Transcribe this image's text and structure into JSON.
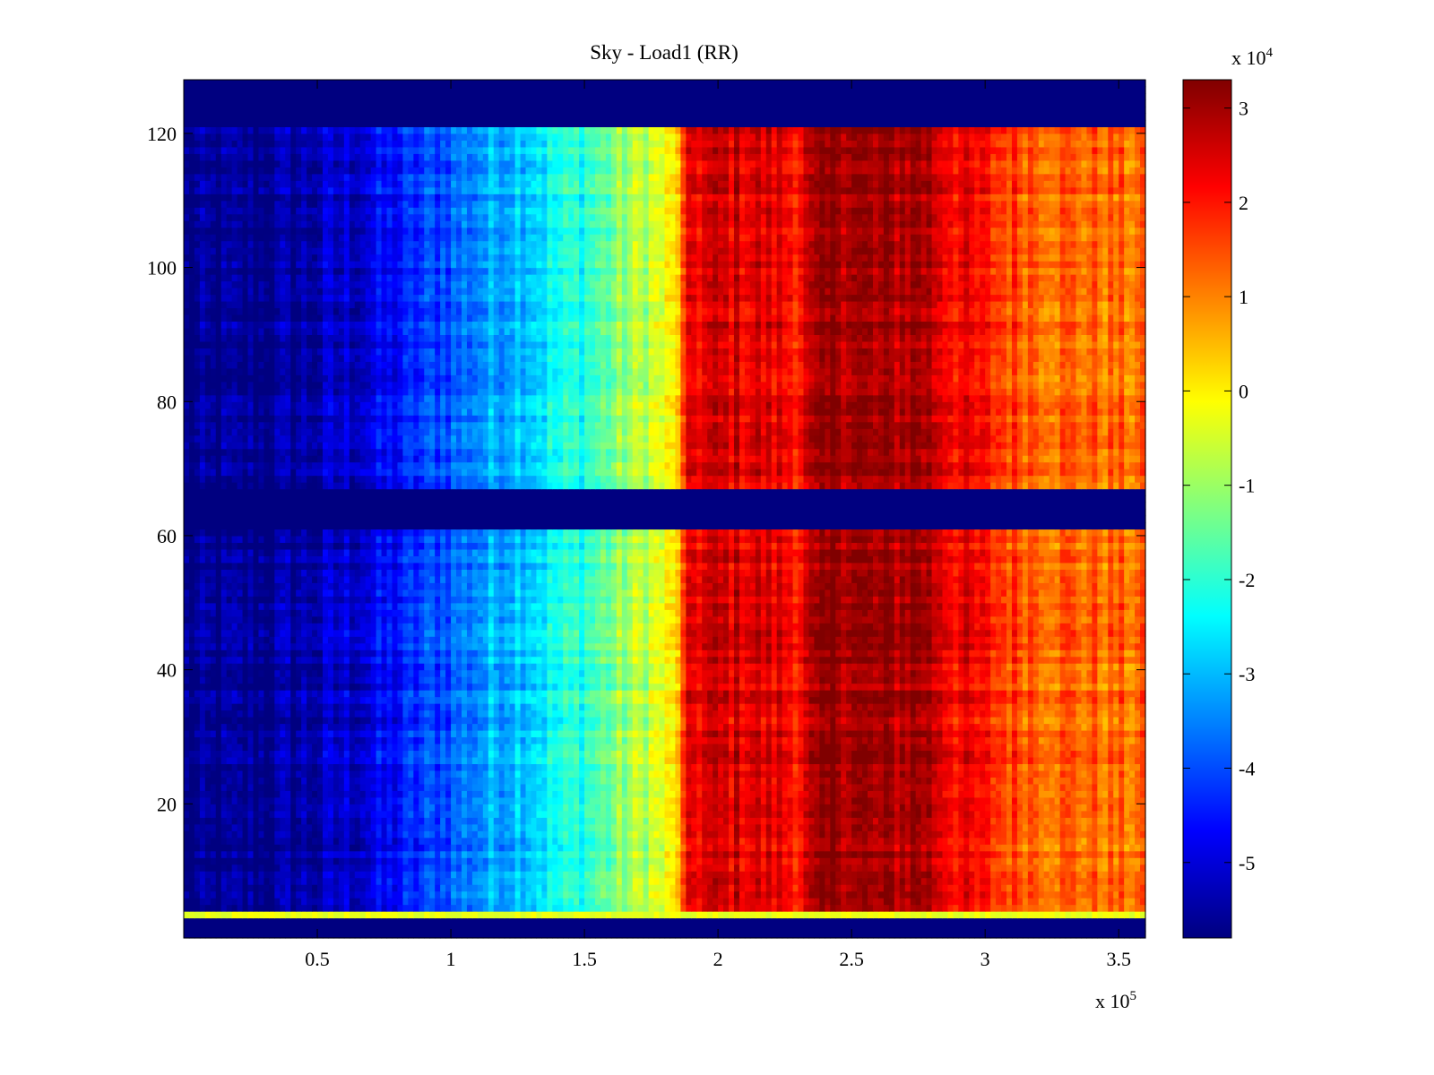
{
  "chart_data": {
    "type": "heatmap",
    "title": "Sky - Load1 (RR)",
    "xlabel": "",
    "ylabel": "",
    "x_range": [
      0,
      360000
    ],
    "y_range": [
      0,
      128
    ],
    "x_ticks": [
      50000,
      100000,
      150000,
      200000,
      250000,
      300000,
      350000
    ],
    "x_tick_labels": [
      "0.5",
      "1",
      "1.5",
      "2",
      "2.5",
      "3",
      "3.5"
    ],
    "x_exponent_label": {
      "base": "x 10",
      "exponent": "5"
    },
    "y_ticks": [
      20,
      40,
      60,
      80,
      100,
      120
    ],
    "y_tick_labels": [
      "20",
      "40",
      "60",
      "80",
      "100",
      "120"
    ],
    "colormap": "jet",
    "color_range": [
      -58000,
      33000
    ],
    "colorbar_ticks": [
      30000,
      20000,
      10000,
      0,
      -10000,
      -20000,
      -30000,
      -40000,
      -50000
    ],
    "colorbar_tick_labels": [
      "3",
      "2",
      "1",
      "0",
      "-1",
      "-2",
      "-3",
      "-4",
      "-5"
    ],
    "colorbar_exponent_label": {
      "base": "x 10",
      "exponent": "4"
    },
    "masked_row_bands": [
      [
        0,
        3
      ],
      [
        61.5,
        67.5
      ],
      [
        121.5,
        128
      ]
    ],
    "bright_row_band": [
      3,
      4
    ],
    "column_profile": {
      "x": [
        0,
        25000,
        50000,
        75000,
        100000,
        125000,
        150000,
        170000,
        183000,
        190000,
        210000,
        230000,
        245000,
        260000,
        275000,
        290000,
        310000,
        330000,
        360000
      ],
      "value": [
        -58000,
        -57000,
        -54000,
        -48000,
        -38000,
        -28000,
        -20000,
        -8000,
        -2000,
        24000,
        25000,
        22000,
        32000,
        28000,
        31000,
        22000,
        16000,
        13000,
        11000
      ]
    }
  }
}
